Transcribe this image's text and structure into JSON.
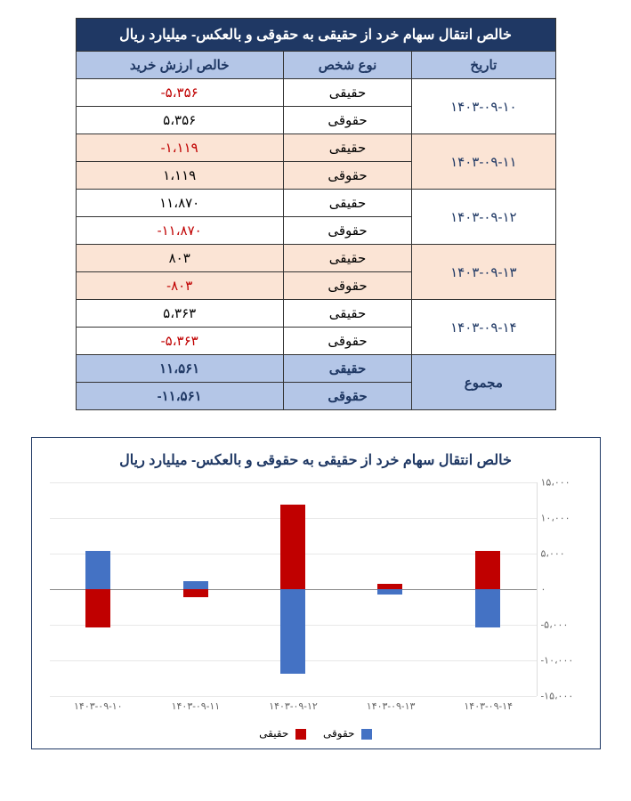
{
  "table": {
    "title": "خالص انتقال سهام خرد از حقیقی به حقوقی و بالعکس- میلیارد ریال",
    "headers": {
      "date": "تاریخ",
      "person_type": "نوع شخص",
      "net_value": "خالص ارزش خرید"
    },
    "rows": [
      {
        "date": "۱۴۰۳-۰۹-۱۰",
        "alt": false,
        "sub": [
          {
            "type": "حقیقی",
            "val": "-۵،۳۵۶",
            "neg": true
          },
          {
            "type": "حقوقی",
            "val": "۵،۳۵۶",
            "neg": false
          }
        ]
      },
      {
        "date": "۱۴۰۳-۰۹-۱۱",
        "alt": true,
        "sub": [
          {
            "type": "حقیقی",
            "val": "-۱،۱۱۹",
            "neg": true
          },
          {
            "type": "حقوقی",
            "val": "۱،۱۱۹",
            "neg": false
          }
        ]
      },
      {
        "date": "۱۴۰۳-۰۹-۱۲",
        "alt": false,
        "sub": [
          {
            "type": "حقیقی",
            "val": "۱۱،۸۷۰",
            "neg": false
          },
          {
            "type": "حقوقی",
            "val": "-۱۱،۸۷۰",
            "neg": true
          }
        ]
      },
      {
        "date": "۱۴۰۳-۰۹-۱۳",
        "alt": true,
        "sub": [
          {
            "type": "حقیقی",
            "val": "۸۰۳",
            "neg": false
          },
          {
            "type": "حقوقی",
            "val": "-۸۰۳",
            "neg": true
          }
        ]
      },
      {
        "date": "۱۴۰۳-۰۹-۱۴",
        "alt": false,
        "sub": [
          {
            "type": "حقیقی",
            "val": "۵،۳۶۳",
            "neg": false
          },
          {
            "type": "حقوقی",
            "val": "-۵،۳۶۳",
            "neg": true
          }
        ]
      }
    ],
    "total": {
      "label": "مجموع",
      "sub": [
        {
          "type": "حقیقی",
          "val": "۱۱،۵۶۱",
          "neg": false
        },
        {
          "type": "حقوقی",
          "val": "-۱۱،۵۶۱",
          "neg": true
        }
      ]
    }
  },
  "chart": {
    "title": "خالص انتقال سهام خرد از حقیقی به حقوقی و بالعکس- میلیارد ریال",
    "type": "bar",
    "ylim": [
      -15000,
      15000
    ],
    "yticks": [
      {
        "v": 15000,
        "label": "۱۵،۰۰۰"
      },
      {
        "v": 10000,
        "label": "۱۰،۰۰۰"
      },
      {
        "v": 5000,
        "label": "۵،۰۰۰"
      },
      {
        "v": 0,
        "label": "۰"
      },
      {
        "v": -5000,
        "label": "-۵،۰۰۰"
      },
      {
        "v": -10000,
        "label": "-۱۰،۰۰۰"
      },
      {
        "v": -15000,
        "label": "-۱۵،۰۰۰"
      }
    ],
    "categories": [
      "۱۴۰۳-۰۹-۱۰",
      "۱۴۰۳-۰۹-۱۱",
      "۱۴۰۳-۰۹-۱۲",
      "۱۴۰۳-۰۹-۱۳",
      "۱۴۰۳-۰۹-۱۴"
    ],
    "series": {
      "haghighi": {
        "label": "حقیقی",
        "color": "#c00000",
        "values": [
          -5356,
          -1119,
          11870,
          803,
          5363
        ]
      },
      "hoghoghi": {
        "label": "حقوقی",
        "color": "#4472c4",
        "values": [
          5356,
          1119,
          -11870,
          -803,
          -5363
        ]
      }
    },
    "background_color": "#ffffff",
    "grid_color": "#e8e8e8",
    "title_fontsize": 16,
    "label_fontsize": 11
  }
}
